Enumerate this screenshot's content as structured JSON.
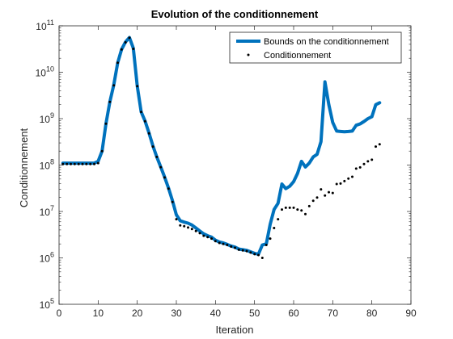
{
  "chart_data": {
    "type": "line",
    "title": "Evolution of the conditionnement",
    "xlabel": "Iteration",
    "ylabel": "Conditionnement",
    "xlim": [
      0,
      90
    ],
    "ylim": [
      100000,
      100000000000
    ],
    "yscale": "log",
    "xticks": [
      0,
      10,
      20,
      30,
      40,
      50,
      60,
      70,
      80,
      90
    ],
    "xtick_labels": [
      "0",
      "10",
      "20",
      "30",
      "40",
      "50",
      "60",
      "70",
      "80",
      "90"
    ],
    "yticks": [
      100000,
      1000000,
      10000000,
      100000000,
      1000000000,
      10000000000,
      100000000000
    ],
    "ytick_labels": [
      {
        "base": "10",
        "exp": "5"
      },
      {
        "base": "10",
        "exp": "6"
      },
      {
        "base": "10",
        "exp": "7"
      },
      {
        "base": "10",
        "exp": "8"
      },
      {
        "base": "10",
        "exp": "9"
      },
      {
        "base": "10",
        "exp": "10"
      },
      {
        "base": "10",
        "exp": "11"
      }
    ],
    "grid": false,
    "legend_position": "top-right",
    "series": [
      {
        "name": "Bounds on the conditionnement",
        "style": "line",
        "color": "#0072BD",
        "points": [
          [
            1,
            110000000.0
          ],
          [
            2,
            110000000.0
          ],
          [
            3,
            110000000.0
          ],
          [
            4,
            110000000.0
          ],
          [
            5,
            110000000.0
          ],
          [
            6,
            110000000.0
          ],
          [
            7,
            110000000.0
          ],
          [
            8,
            110000000.0
          ],
          [
            9,
            110000000.0
          ],
          [
            10,
            120000000.0
          ],
          [
            11,
            200000000.0
          ],
          [
            12,
            780000000.0
          ],
          [
            13,
            2300000000.0
          ],
          [
            14,
            5400000000.0
          ],
          [
            15,
            16000000000.0
          ],
          [
            16,
            31000000000.0
          ],
          [
            17,
            45000000000.0
          ],
          [
            18,
            56000000000.0
          ],
          [
            19,
            33000000000.0
          ],
          [
            20,
            5000000000.0
          ],
          [
            21,
            1400000000.0
          ],
          [
            22,
            890000000.0
          ],
          [
            23,
            490000000.0
          ],
          [
            24,
            260000000.0
          ],
          [
            25,
            150000000.0
          ],
          [
            26,
            91000000.0
          ],
          [
            27,
            55000000.0
          ],
          [
            28,
            32000000.0
          ],
          [
            29,
            17000000.0
          ],
          [
            30,
            8500000.0
          ],
          [
            31,
            6300000.0
          ],
          [
            32,
            5900000.0
          ],
          [
            33,
            5600000.0
          ],
          [
            34,
            5100000.0
          ],
          [
            35,
            4400000.0
          ],
          [
            36,
            3800000.0
          ],
          [
            37,
            3300000.0
          ],
          [
            38,
            3000000.0
          ],
          [
            39,
            2800000.0
          ],
          [
            40,
            2400000.0
          ],
          [
            41,
            2200000.0
          ],
          [
            42,
            2100000.0
          ],
          [
            43,
            1950000.0
          ],
          [
            44,
            1800000.0
          ],
          [
            45,
            1700000.0
          ],
          [
            46,
            1550000.0
          ],
          [
            47,
            1500000.0
          ],
          [
            48,
            1450000.0
          ],
          [
            49,
            1350000.0
          ],
          [
            50,
            1250000.0
          ],
          [
            51,
            1200000.0
          ],
          [
            52,
            1900000.0
          ],
          [
            53,
            2000000.0
          ],
          [
            54,
            5300000.0
          ],
          [
            55,
            11000000.0
          ],
          [
            56,
            15000000.0
          ],
          [
            57,
            39000000.0
          ],
          [
            58,
            31000000.0
          ],
          [
            59,
            35000000.0
          ],
          [
            60,
            44000000.0
          ],
          [
            61,
            66000000.0
          ],
          [
            62,
            120000000.0
          ],
          [
            63,
            91000000.0
          ],
          [
            64,
            110000000.0
          ],
          [
            65,
            150000000.0
          ],
          [
            66,
            170000000.0
          ],
          [
            67,
            320000000.0
          ],
          [
            68,
            6200000000.0
          ],
          [
            69,
            2000000000.0
          ],
          [
            70,
            830000000.0
          ],
          [
            71,
            540000000.0
          ],
          [
            72,
            530000000.0
          ],
          [
            73,
            520000000.0
          ],
          [
            74,
            530000000.0
          ],
          [
            75,
            540000000.0
          ],
          [
            76,
            720000000.0
          ],
          [
            77,
            770000000.0
          ],
          [
            78,
            870000000.0
          ],
          [
            79,
            1000000000.0
          ],
          [
            80,
            1100000000.0
          ],
          [
            81,
            2000000000.0
          ],
          [
            82,
            2200000000.0
          ]
        ]
      },
      {
        "name": "Conditionnement",
        "style": "dots",
        "color": "#000000",
        "points": [
          [
            1,
            105000000.0
          ],
          [
            2,
            105000000.0
          ],
          [
            3,
            105000000.0
          ],
          [
            4,
            105000000.0
          ],
          [
            5,
            105000000.0
          ],
          [
            6,
            105000000.0
          ],
          [
            7,
            105000000.0
          ],
          [
            8,
            105000000.0
          ],
          [
            9,
            105000000.0
          ],
          [
            10,
            110000000.0
          ],
          [
            11,
            200000000.0
          ],
          [
            12,
            780000000.0
          ],
          [
            13,
            2300000000.0
          ],
          [
            14,
            5200000000.0
          ],
          [
            15,
            16000000000.0
          ],
          [
            16,
            31000000000.0
          ],
          [
            17,
            44000000000.0
          ],
          [
            18,
            55000000000.0
          ],
          [
            19,
            32000000000.0
          ],
          [
            20,
            5000000000.0
          ],
          [
            21,
            1400000000.0
          ],
          [
            22,
            880000000.0
          ],
          [
            23,
            480000000.0
          ],
          [
            24,
            250000000.0
          ],
          [
            25,
            150000000.0
          ],
          [
            26,
            90000000.0
          ],
          [
            27,
            54000000.0
          ],
          [
            28,
            31000000.0
          ],
          [
            29,
            16000000.0
          ],
          [
            30,
            6800000.0
          ],
          [
            31,
            5000000.0
          ],
          [
            32,
            4800000.0
          ],
          [
            33,
            4500000.0
          ],
          [
            34,
            4200000.0
          ],
          [
            35,
            3800000.0
          ],
          [
            36,
            3400000.0
          ],
          [
            37,
            3000000.0
          ],
          [
            38,
            2800000.0
          ],
          [
            39,
            2600000.0
          ],
          [
            40,
            2300000.0
          ],
          [
            41,
            2100000.0
          ],
          [
            42,
            2000000.0
          ],
          [
            43,
            1900000.0
          ],
          [
            44,
            1750000.0
          ],
          [
            45,
            1650000.0
          ],
          [
            46,
            1500000.0
          ],
          [
            47,
            1450000.0
          ],
          [
            48,
            1400000.0
          ],
          [
            49,
            1300000.0
          ],
          [
            50,
            1200000.0
          ],
          [
            51,
            1150000.0
          ],
          [
            52,
            1000000.0
          ],
          [
            53,
            1900000.0
          ],
          [
            54,
            2600000.0
          ],
          [
            55,
            4400000.0
          ],
          [
            56,
            6800000.0
          ],
          [
            57,
            11000000.0
          ],
          [
            58,
            12000000.0
          ],
          [
            59,
            12000000.0
          ],
          [
            60,
            12000000.0
          ],
          [
            61,
            11000000.0
          ],
          [
            62,
            10500000.0
          ],
          [
            63,
            8800000.0
          ],
          [
            64,
            13000000.0
          ],
          [
            65,
            17000000.0
          ],
          [
            66,
            20000000.0
          ],
          [
            67,
            30000000.0
          ],
          [
            68,
            22000000.0
          ],
          [
            69,
            26000000.0
          ],
          [
            70,
            25000000.0
          ],
          [
            71,
            39000000.0
          ],
          [
            72,
            40000000.0
          ],
          [
            73,
            45000000.0
          ],
          [
            74,
            51000000.0
          ],
          [
            75,
            56000000.0
          ],
          [
            76,
            84000000.0
          ],
          [
            77,
            89000000.0
          ],
          [
            78,
            105000000.0
          ],
          [
            79,
            120000000.0
          ],
          [
            80,
            130000000.0
          ],
          [
            81,
            250000000.0
          ],
          [
            82,
            280000000.0
          ]
        ]
      }
    ]
  }
}
